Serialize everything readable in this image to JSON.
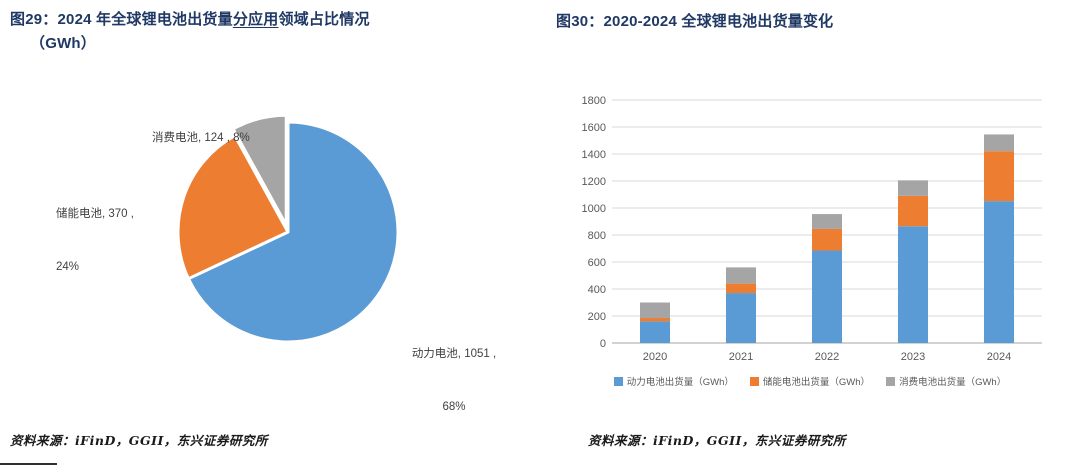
{
  "colors": {
    "power": "#5B9BD5",
    "storage": "#ED7D31",
    "consumer": "#A5A5A5",
    "title": "#1F3864",
    "grid": "#D9D9D9",
    "axis_line": "#A6A6A6",
    "axis_text": "#595959"
  },
  "left_panel": {
    "title_prefix": "图29：2024 年全球锂电池出货量",
    "title_underlined": "分应用",
    "title_suffix": "领域占比情况",
    "title_line2": "（GWh）",
    "source": "资料来源：iFinD，GGII，东兴证券研究所"
  },
  "right_panel": {
    "title": "图30：2020-2024 全球锂电池出货量变化",
    "source": "资料来源：iFinD，GGII，东兴证券研究所"
  },
  "chart_data": [
    {
      "type": "pie",
      "title": "2024 年全球锂电池出货量分应用领域占比情况（GWh）",
      "direction": "clockwise",
      "start_angle_deg": 0,
      "slices": [
        {
          "name": "动力电池",
          "value": 1051,
          "pct": 68,
          "color_key": "power",
          "explode": 0,
          "label_line1": "动力电池, 1051 ,",
          "label_line2": "68%"
        },
        {
          "name": "储能电池",
          "value": 370,
          "pct": 24,
          "color_key": "storage",
          "explode": 0,
          "label_line1": "储能电池, 370 ,",
          "label_line2": "24%"
        },
        {
          "name": "消费电池",
          "value": 124,
          "pct": 8,
          "color_key": "consumer",
          "explode": 7,
          "label_line1": "消费电池, 124 , 8%",
          "label_line2": ""
        }
      ]
    },
    {
      "type": "bar",
      "stacked": true,
      "title": "2020-2024 全球锂电池出货量变化",
      "categories": [
        "2020",
        "2021",
        "2022",
        "2023",
        "2024"
      ],
      "series": [
        {
          "name": "动力电池出货量（GWh）",
          "color_key": "power",
          "values": [
            160,
            370,
            685,
            865,
            1051
          ]
        },
        {
          "name": "储能电池出货量（GWh）",
          "color_key": "storage",
          "values": [
            25,
            70,
            160,
            225,
            370
          ]
        },
        {
          "name": "消费电池出货量（GWh）",
          "color_key": "consumer",
          "values": [
            115,
            120,
            110,
            115,
            124
          ]
        }
      ],
      "ylim": [
        0,
        1800
      ],
      "ytick_step": 200,
      "grid": true,
      "legend_position": "bottom"
    }
  ]
}
